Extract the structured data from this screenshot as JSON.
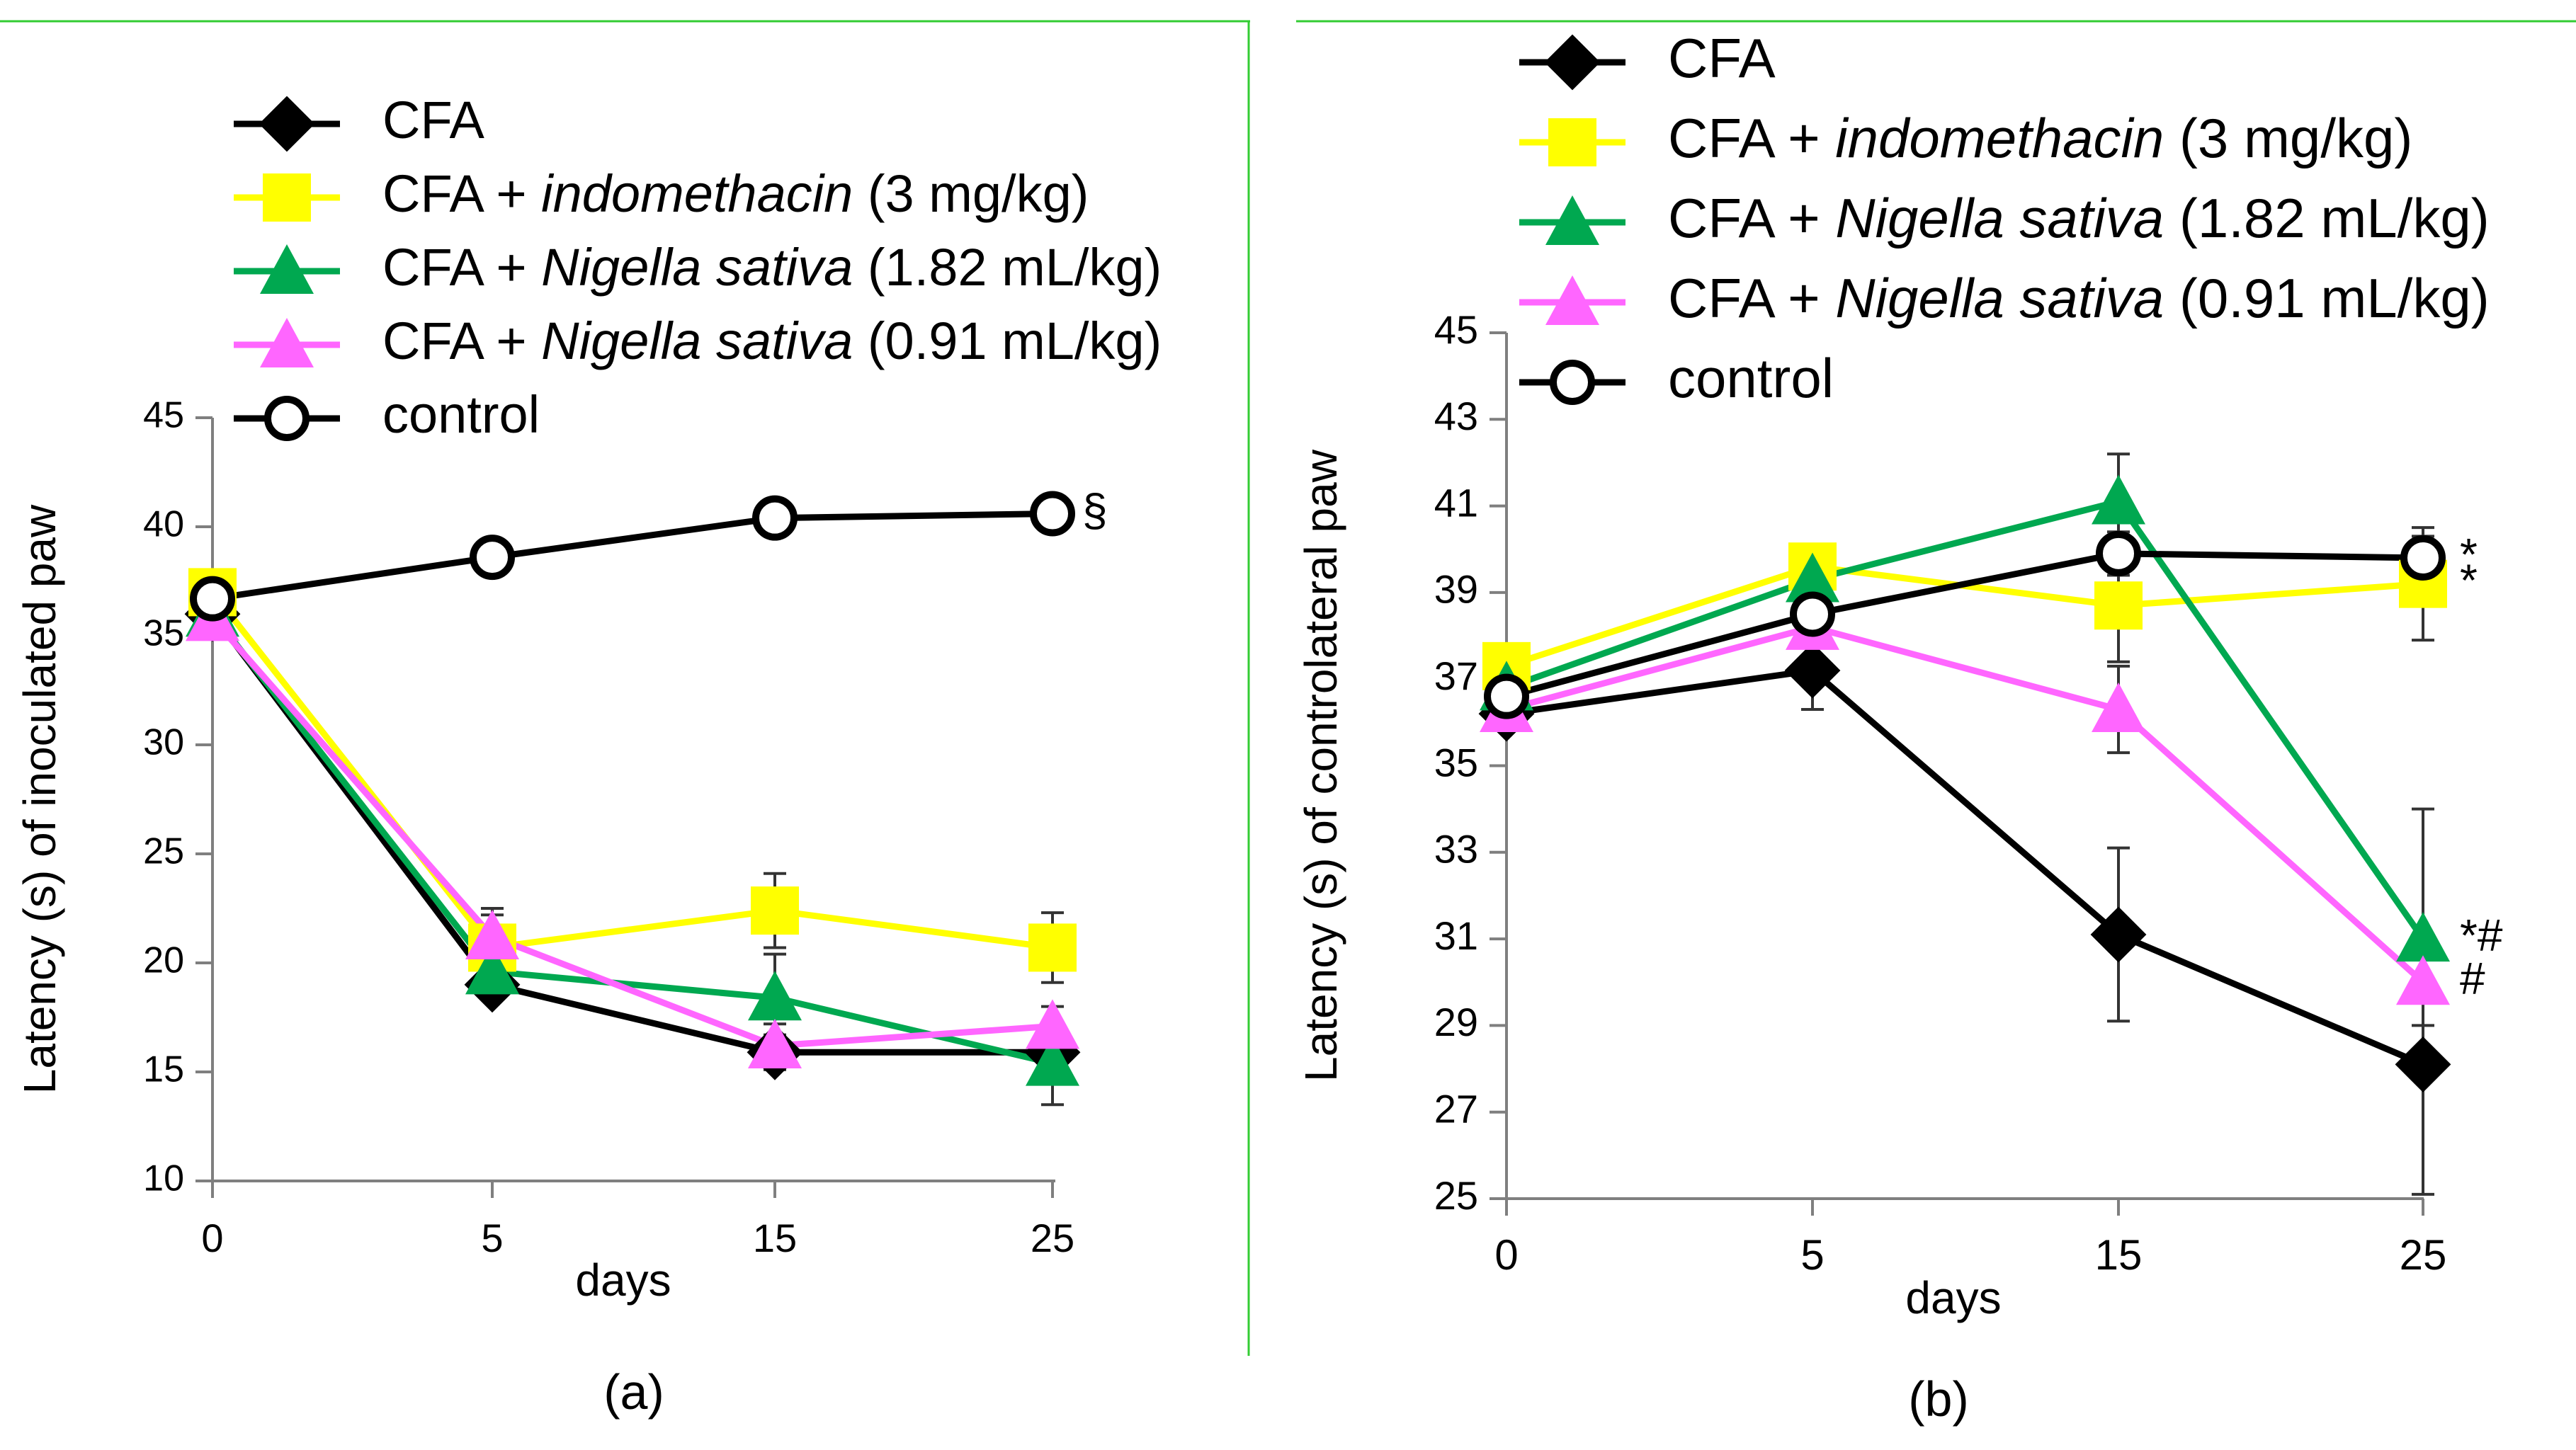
{
  "figure": {
    "colors": {
      "CFA": "#000000",
      "indo": "#ffff00",
      "ns182": "#00a850",
      "ns091": "#ff66ff",
      "control": "#000000",
      "frame": "#33cc33"
    }
  },
  "chart_data": [
    {
      "panel": "a",
      "type": "line",
      "title": "",
      "xlabel": "days",
      "ylabel": "Latency (s) of inoculated paw",
      "panel_label": "(a)",
      "x": [
        0,
        5,
        15,
        25
      ],
      "x_tick_labels": [
        "0",
        "5",
        "15",
        "25"
      ],
      "ylim": [
        10,
        45
      ],
      "y_ticks": [
        10,
        15,
        20,
        25,
        30,
        35,
        40,
        45
      ],
      "grid": false,
      "legend_position": "top",
      "series": [
        {
          "key": "cfa",
          "name": "CFA",
          "label_parts": [
            "CFA",
            "",
            ""
          ],
          "color": "#000000",
          "marker": "diamond",
          "values": [
            36.0,
            19.0,
            15.9,
            15.9
          ],
          "errors": [
            0,
            0.6,
            0.8,
            0.8
          ]
        },
        {
          "key": "indo",
          "name": "CFA + indomethacin (3 mg/kg)",
          "label_parts": [
            "CFA + ",
            "indomethacin",
            " (3 mg/kg)"
          ],
          "color": "#ffff00",
          "marker": "square",
          "values": [
            37.0,
            20.7,
            22.4,
            20.7
          ],
          "errors": [
            0,
            1.8,
            1.7,
            1.6
          ]
        },
        {
          "key": "ns182",
          "name": "CFA + Nigella sativa (1.82 mL/kg)",
          "label_parts": [
            "CFA + ",
            "Nigella sativa",
            " (1.82 mL/kg)"
          ],
          "color": "#00a850",
          "marker": "triangle",
          "values": [
            36.0,
            19.6,
            18.4,
            15.4
          ],
          "errors": [
            0,
            1.0,
            2.0,
            1.9
          ]
        },
        {
          "key": "ns091",
          "name": "CFA + Nigella sativa (0.91 mL/kg)",
          "label_parts": [
            "CFA + ",
            "Nigella sativa",
            " (0.91 mL/kg)"
          ],
          "color": "#ff66ff",
          "marker": "triangle",
          "values": [
            35.8,
            21.2,
            16.2,
            17.1
          ],
          "errors": [
            0,
            1.0,
            1.0,
            0.9
          ]
        },
        {
          "key": "ctrl",
          "name": "control",
          "label_parts": [
            "control",
            "",
            ""
          ],
          "color": "#000000",
          "marker": "circle",
          "values": [
            36.7,
            38.6,
            40.4,
            40.6
          ],
          "errors": [
            0,
            0,
            0,
            0
          ]
        }
      ],
      "annotations": [
        {
          "text": "§",
          "series": "ctrl",
          "x": 25
        }
      ]
    },
    {
      "panel": "b",
      "type": "line",
      "title": "",
      "xlabel": "days",
      "ylabel": "Latency (s) of controlateral paw",
      "panel_label": "(b)",
      "x": [
        0,
        5,
        15,
        25
      ],
      "x_tick_labels": [
        "0",
        "5",
        "15",
        "25"
      ],
      "ylim": [
        25,
        45
      ],
      "y_ticks": [
        25,
        27,
        29,
        31,
        33,
        35,
        37,
        39,
        41,
        43,
        45
      ],
      "grid": false,
      "legend_position": "top",
      "series": [
        {
          "key": "cfa",
          "name": "CFA",
          "label_parts": [
            "CFA",
            "",
            ""
          ],
          "color": "#000000",
          "marker": "diamond",
          "values": [
            36.2,
            37.2,
            31.1,
            28.1
          ],
          "errors": [
            0.3,
            0.9,
            2.0,
            3.0
          ]
        },
        {
          "key": "indo",
          "name": "CFA + indomethacin (3 mg/kg)",
          "label_parts": [
            "CFA + ",
            "indomethacin",
            " (3 mg/kg)"
          ],
          "color": "#ffff00",
          "marker": "square",
          "values": [
            37.3,
            39.6,
            38.7,
            39.2
          ],
          "errors": [
            0.5,
            0.3,
            1.3,
            1.3
          ]
        },
        {
          "key": "ns182",
          "name": "CFA + Nigella sativa (1.82 mL/kg)",
          "label_parts": [
            "CFA + ",
            "Nigella sativa",
            " (1.82 mL/kg)"
          ],
          "color": "#00a850",
          "marker": "triangle",
          "values": [
            36.8,
            39.3,
            41.1,
            31.0
          ],
          "errors": [
            0.5,
            0.3,
            1.1,
            3.0
          ]
        },
        {
          "key": "ns091",
          "name": "CFA + Nigella sativa (0.91 mL/kg)",
          "label_parts": [
            "CFA + ",
            "Nigella sativa",
            " (0.91 mL/kg)"
          ],
          "color": "#ff66ff",
          "marker": "triangle",
          "values": [
            36.3,
            38.2,
            36.3,
            30.0
          ],
          "errors": [
            0.3,
            0.3,
            1.0,
            1.0
          ]
        },
        {
          "key": "ctrl",
          "name": "control",
          "label_parts": [
            "control",
            "",
            ""
          ],
          "color": "#000000",
          "marker": "circle",
          "values": [
            36.6,
            38.5,
            39.9,
            39.8
          ],
          "errors": [
            0.3,
            0.3,
            0.5,
            0.5
          ]
        }
      ],
      "annotations": [
        {
          "text": "*",
          "series": "ctrl",
          "x": 25
        },
        {
          "text": "*",
          "series": "indo",
          "x": 25
        },
        {
          "text": "*#",
          "series": "ns182",
          "x": 25
        },
        {
          "text": "#",
          "series": "ns091",
          "x": 25
        }
      ]
    }
  ]
}
